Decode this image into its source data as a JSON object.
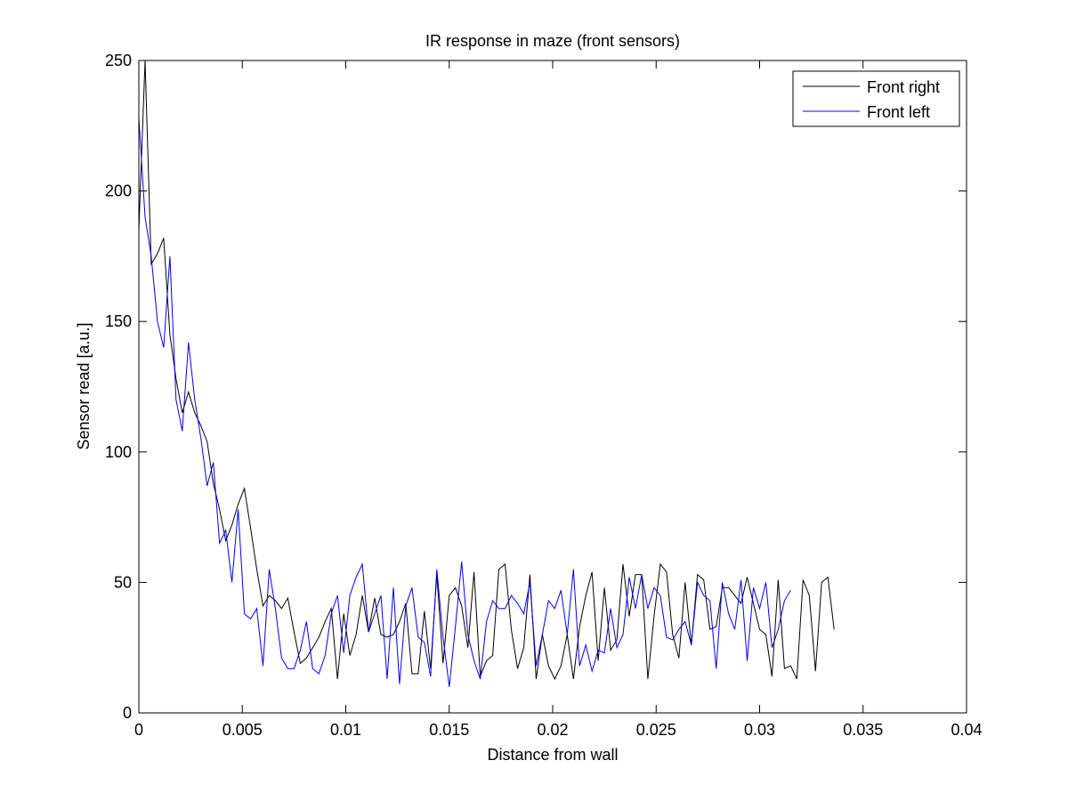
{
  "chart_data": {
    "type": "line",
    "title": "IR response in maze (front sensors)",
    "xlabel": "Distance from wall",
    "ylabel": "Sensor read [a.u.]",
    "xlim": [
      0,
      0.04
    ],
    "ylim": [
      0,
      250
    ],
    "x_ticks": [
      {
        "value": 0,
        "label": "0"
      },
      {
        "value": 0.005,
        "label": "0.005"
      },
      {
        "value": 0.01,
        "label": "0.01"
      },
      {
        "value": 0.015,
        "label": "0.015"
      },
      {
        "value": 0.02,
        "label": "0.02"
      },
      {
        "value": 0.025,
        "label": "0.025"
      },
      {
        "value": 0.03,
        "label": "0.03"
      },
      {
        "value": 0.035,
        "label": "0.035"
      },
      {
        "value": 0.04,
        "label": "0.04"
      }
    ],
    "y_ticks": [
      {
        "value": 0,
        "label": "0"
      },
      {
        "value": 50,
        "label": "50"
      },
      {
        "value": 100,
        "label": "100"
      },
      {
        "value": 150,
        "label": "150"
      },
      {
        "value": 200,
        "label": "200"
      },
      {
        "value": 250,
        "label": "250"
      }
    ],
    "grid": false,
    "legend_position": "top-right",
    "x_step": 0.0003,
    "series": [
      {
        "name": "Front right",
        "color": "#000000",
        "values": [
          185,
          250,
          172,
          176,
          182,
          145,
          128,
          115,
          123,
          115,
          110,
          104,
          88,
          78,
          66,
          72,
          80,
          86,
          71,
          55,
          41,
          45,
          43,
          40,
          44,
          31,
          19,
          21,
          25,
          29,
          35,
          40,
          13,
          38,
          22,
          30,
          45,
          31,
          44,
          30,
          29,
          30,
          35,
          42,
          15,
          15,
          39,
          17,
          53,
          19,
          45,
          48,
          41,
          25,
          54,
          14,
          20,
          22,
          55,
          57,
          32,
          17,
          25,
          53,
          13,
          30,
          18,
          13,
          18,
          30,
          13,
          33,
          45,
          54,
          20,
          48,
          24,
          28,
          57,
          37,
          53,
          53,
          13,
          37,
          57,
          54,
          30,
          21,
          50,
          26,
          53,
          51,
          32,
          33,
          48,
          48,
          45,
          42,
          52,
          42,
          32,
          30,
          14,
          51,
          17,
          18,
          13,
          51,
          45,
          16,
          50,
          52,
          32
        ]
      },
      {
        "name": "Front left",
        "color": "#0000ff",
        "values": [
          228,
          190,
          175,
          150,
          140,
          175,
          120,
          108,
          142,
          120,
          105,
          87,
          96,
          65,
          70,
          50,
          78,
          38,
          36,
          40,
          18,
          55,
          40,
          21,
          17,
          17,
          24,
          35,
          17,
          15,
          22,
          38,
          45,
          23,
          45,
          52,
          57,
          31,
          38,
          45,
          13,
          48,
          11,
          41,
          48,
          29,
          27,
          14,
          55,
          29,
          10,
          33,
          58,
          30,
          20,
          13,
          35,
          43,
          40,
          40,
          45,
          42,
          38,
          50,
          18,
          30,
          43,
          40,
          47,
          30,
          55,
          18,
          26,
          16,
          24,
          23,
          40,
          25,
          30,
          52,
          40,
          53,
          40,
          48,
          45,
          29,
          28,
          32,
          35,
          26,
          50,
          45,
          43,
          17,
          50,
          38,
          32,
          51,
          20,
          48,
          40,
          50,
          25,
          32,
          43,
          47
        ]
      }
    ]
  }
}
